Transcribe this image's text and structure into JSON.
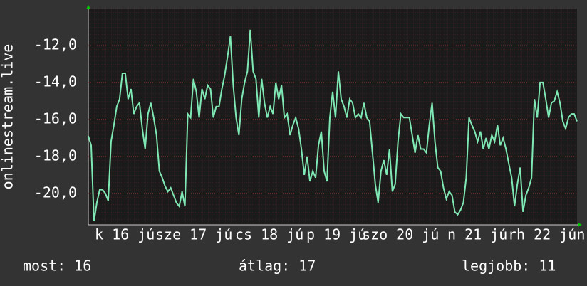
{
  "chart_data": {
    "type": "line",
    "ylabel": "onlinestream.live",
    "x_labels": [
      "k 16 jú",
      "sze 17 jú",
      "cs 18 jú",
      "p 19 jú",
      "szo 20 jú",
      "n 21 jú",
      "rh 22 jún"
    ],
    "ylim": [
      -21.7,
      -10
    ],
    "yticks": [
      {
        "value": -12,
        "label": "-12,0"
      },
      {
        "value": -14,
        "label": "-14,0"
      },
      {
        "value": -16,
        "label": "-16,0"
      },
      {
        "value": -18,
        "label": "-18,0"
      },
      {
        "value": -20,
        "label": "-20,0"
      }
    ],
    "grid": true,
    "series": [
      {
        "name": "onlinestream.live",
        "color": "#7fe8b4",
        "values": [
          -16.9,
          -17.4,
          -21.5,
          -20.5,
          -19.8,
          -19.8,
          -20,
          -20.4,
          -17.2,
          -16.3,
          -15.3,
          -14.9,
          -13.5,
          -13.5,
          -14.9,
          -14.35,
          -15.7,
          -15.3,
          -15.1,
          -16.5,
          -17.6,
          -15.7,
          -15.1,
          -15.9,
          -16.85,
          -18.8,
          -19.15,
          -19.6,
          -19.9,
          -19.7,
          -20.1,
          -20.5,
          -20.7,
          -19.9,
          -20.7,
          -15.7,
          -15.9,
          -13.8,
          -14.5,
          -15.9,
          -14.35,
          -14.9,
          -14.15,
          -14.35,
          -15.9,
          -15.3,
          -15.3,
          -14.35,
          -13.6,
          -12.6,
          -11.5,
          -14.15,
          -15.9,
          -16.85,
          -14.9,
          -14.0,
          -13.4,
          -11.15,
          -13.4,
          -13.8,
          -15.9,
          -13.8,
          -15.1,
          -15.9,
          -15.3,
          -15.7,
          -14.0,
          -14.9,
          -14.15,
          -15.9,
          -15.7,
          -16.85,
          -16.3,
          -15.9,
          -16.5,
          -17.6,
          -19.0,
          -18.0,
          -19.35,
          -18.8,
          -19.15,
          -17.4,
          -16.65,
          -18.8,
          -19.35,
          -15.9,
          -14.5,
          -15.9,
          -13.4,
          -14.9,
          -15.3,
          -15.9,
          -14.9,
          -15.1,
          -15.9,
          -15.7,
          -15.9,
          -15.1,
          -15.9,
          -16.1,
          -17.8,
          -19.5,
          -20.5,
          -18.8,
          -18.2,
          -19.0,
          -17.6,
          -19.9,
          -19.5,
          -17.2,
          -15.7,
          -15.9,
          -15.9,
          -15.9,
          -16.85,
          -17.8,
          -16.85,
          -17.6,
          -17.6,
          -17.8,
          -16.3,
          -15.1,
          -17.2,
          -18.6,
          -18.8,
          -19.7,
          -20.3,
          -19.9,
          -20.1,
          -21.0,
          -21.15,
          -20.9,
          -20.5,
          -19.15,
          -15.9,
          -16.3,
          -16.65,
          -17.2,
          -16.65,
          -17.6,
          -17.0,
          -17.6,
          -16.85,
          -17.2,
          -16.3,
          -17.4,
          -17.0,
          -17.6,
          -18.4,
          -19.15,
          -20.7,
          -19.5,
          -18.6,
          -21.0,
          -20.1,
          -19.7,
          -19.15,
          -14.9,
          -15.9,
          -14.0,
          -14.0,
          -14.9,
          -15.9,
          -15.1,
          -15.0,
          -14.5,
          -15.1,
          -16.1,
          -16.5,
          -15.9,
          -15.7,
          -15.7,
          -16.1
        ]
      }
    ]
  },
  "footer": [
    "most: 16",
    "átlag: 17",
    "legjobb: 11"
  ]
}
